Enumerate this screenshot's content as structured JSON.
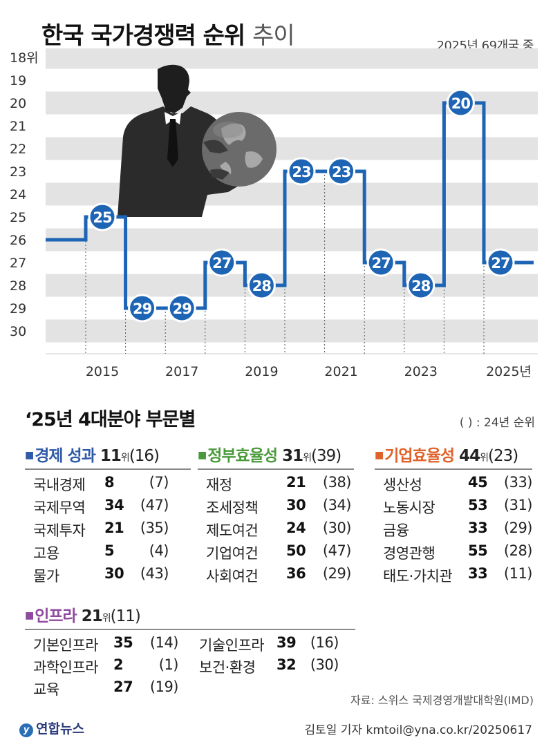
{
  "title": {
    "main": "한국 국가경쟁력 순위",
    "sub": "추이",
    "note": "2025년 69개국 중"
  },
  "chart_data": {
    "type": "line",
    "step": true,
    "x": [
      2014,
      2015,
      2016,
      2017,
      2018,
      2019,
      2020,
      2021,
      2022,
      2023,
      2024,
      2025
    ],
    "series": [
      {
        "values": [
          26,
          25,
          29,
          29,
          27,
          28,
          23,
          23,
          27,
          28,
          20,
          27
        ]
      }
    ],
    "point_labels": [
      "",
      "25",
      "29",
      "29",
      "27",
      "28",
      "23",
      "23",
      "27",
      "28",
      "20",
      "27"
    ],
    "y_ticks": [
      "18위",
      "19",
      "20",
      "21",
      "22",
      "23",
      "24",
      "25",
      "26",
      "27",
      "28",
      "29",
      "30"
    ],
    "x_ticks": [
      "2015",
      "2017",
      "2019",
      "2021",
      "2023",
      "2025년"
    ],
    "ylim": [
      18,
      30
    ],
    "y_inverted": true,
    "line_color": "#1e64b4",
    "band_color": "#e3e3e3"
  },
  "section": {
    "title": "‘25년 4대분야 부문별",
    "note": "( ) : 24년 순위"
  },
  "categories": [
    {
      "name": "경제 성과",
      "rank": "11",
      "prev": "(16)",
      "color": "#2f5aa8",
      "unit": "위",
      "rows": [
        {
          "name": "국내경제",
          "rank": "8",
          "prev": "(7)"
        },
        {
          "name": "국제무역",
          "rank": "34",
          "prev": "(47)"
        },
        {
          "name": "국제투자",
          "rank": "21",
          "prev": "(35)"
        },
        {
          "name": "고용",
          "rank": "5",
          "prev": "(4)"
        },
        {
          "name": "물가",
          "rank": "30",
          "prev": "(43)"
        }
      ]
    },
    {
      "name": "정부효율성",
      "rank": "31",
      "prev": "(39)",
      "color": "#4a9a3c",
      "unit": "위",
      "rows": [
        {
          "name": "재정",
          "rank": "21",
          "prev": "(38)"
        },
        {
          "name": "조세정책",
          "rank": "30",
          "prev": "(34)"
        },
        {
          "name": "제도여건",
          "rank": "24",
          "prev": "(30)"
        },
        {
          "name": "기업여건",
          "rank": "50",
          "prev": "(47)"
        },
        {
          "name": "사회여건",
          "rank": "36",
          "prev": "(29)"
        }
      ]
    },
    {
      "name": "기업효율성",
      "rank": "44",
      "prev": "(23)",
      "color": "#e0622a",
      "unit": "위",
      "rows": [
        {
          "name": "생산성",
          "rank": "45",
          "prev": "(33)"
        },
        {
          "name": "노동시장",
          "rank": "53",
          "prev": "(31)"
        },
        {
          "name": "금융",
          "rank": "33",
          "prev": "(29)"
        },
        {
          "name": "경영관행",
          "rank": "55",
          "prev": "(28)"
        },
        {
          "name": "태도·가치관",
          "rank": "33",
          "prev": "(11)"
        }
      ]
    },
    {
      "name": "인프라",
      "rank": "21",
      "prev": "(11)",
      "color": "#8e4a9e",
      "unit": "위",
      "rows": [
        {
          "name": "기본인프라",
          "rank": "35",
          "prev": "(14)"
        },
        {
          "name": "과학인프라",
          "rank": "2",
          "prev": "(1)"
        },
        {
          "name": "교육",
          "rank": "27",
          "prev": "(19)"
        },
        {
          "name": "기술인프라",
          "rank": "39",
          "prev": "(16)"
        },
        {
          "name": "보건·환경",
          "rank": "32",
          "prev": "(30)"
        }
      ]
    }
  ],
  "square_glyph": "■",
  "source": "자료: 스위스 국제경영개발대학원(IMD)",
  "logo": {
    "icon": "y",
    "text": "연합뉴스"
  },
  "credit": "김토일 기자 kmtoil@yna.co.kr/20250617"
}
